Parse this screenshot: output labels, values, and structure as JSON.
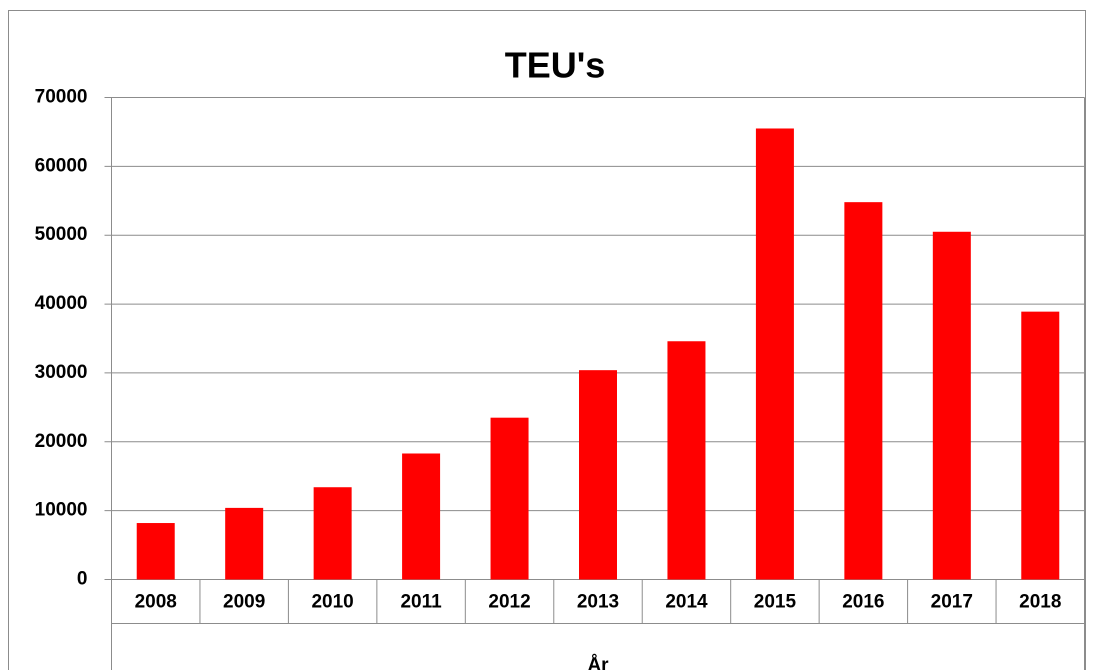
{
  "chart_data": {
    "type": "bar",
    "title": "TEU's",
    "x_label": "År",
    "categories": [
      "2008",
      "2009",
      "2010",
      "2011",
      "2012",
      "2013",
      "2014",
      "2015",
      "2016",
      "2017",
      "2018"
    ],
    "values": [
      8200,
      10400,
      13400,
      18300,
      23500,
      30400,
      34600,
      65500,
      54800,
      50500,
      38900
    ],
    "color": "#ff0000",
    "ylim": [
      0,
      70000
    ],
    "yticks": [
      0,
      10000,
      20000,
      30000,
      40000,
      50000,
      60000,
      70000
    ],
    "grid": true
  }
}
